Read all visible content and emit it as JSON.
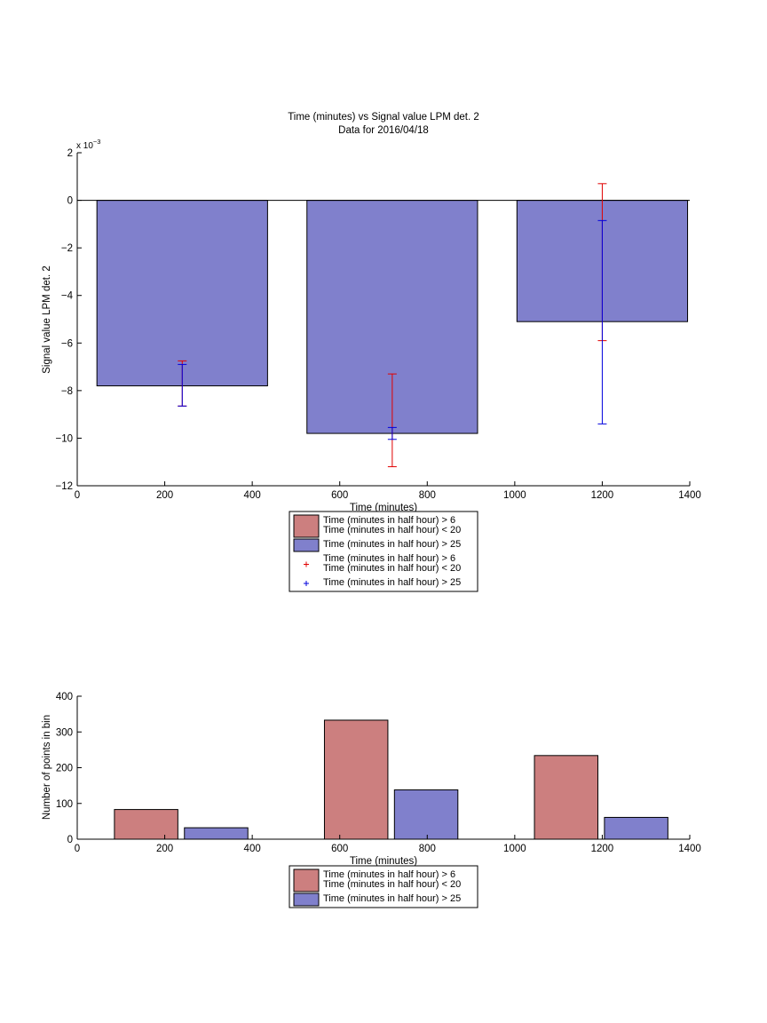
{
  "chart_data": [
    {
      "type": "bar",
      "title": "Time (minutes) vs Signal value LPM det. 2",
      "subtitle": "Data for 2016/04/18",
      "xlabel": "Time (minutes)",
      "ylabel": "Signal value LPM det. 2",
      "exponent_label": "x 10",
      "exponent_power": "−3",
      "xlim": [
        0,
        1400
      ],
      "ylim": [
        -12,
        2
      ],
      "xticks": [
        0,
        200,
        400,
        600,
        800,
        1000,
        1200,
        1400
      ],
      "yticks": [
        -12,
        -10,
        -8,
        -6,
        -4,
        -2,
        0,
        2
      ],
      "grid": false,
      "legend_position": "bottom-center",
      "bars": [
        {
          "x0": 45,
          "x1": 435,
          "value": -7.8
        },
        {
          "x0": 525,
          "x1": 915,
          "value": -9.8
        },
        {
          "x0": 1005,
          "x1": 1395,
          "value": -5.1
        }
      ],
      "bar_color": "#8080cc",
      "legend": [
        {
          "kind": "patch",
          "color": "#cc7f7f",
          "lines": [
            "Time (minutes in half hour) > 6",
            "Time (minutes in half hour) < 20"
          ]
        },
        {
          "kind": "patch",
          "color": "#8080cc",
          "lines": [
            "Time (minutes in half hour) > 25"
          ]
        },
        {
          "kind": "marker",
          "color": "#e00000",
          "lines": [
            "Time (minutes in half hour) > 6",
            "Time (minutes in half hour) < 20"
          ]
        },
        {
          "kind": "marker",
          "color": "#0000dd",
          "lines": [
            "Time (minutes in half hour) > 25"
          ]
        }
      ],
      "error_series": [
        {
          "name": "Time (minutes in half hour) > 6 Time (minutes in half hour) < 20",
          "color": "#e00000",
          "points": [
            {
              "x": 240,
              "low": -8.65,
              "high": -6.75
            },
            {
              "x": 720,
              "low": -11.2,
              "high": -7.3
            },
            {
              "x": 1200,
              "low": -5.9,
              "high": 0.7
            }
          ]
        },
        {
          "name": "Time (minutes in half hour) > 25",
          "color": "#0000dd",
          "points": [
            {
              "x": 240,
              "low": -8.65,
              "high": -6.9
            },
            {
              "x": 720,
              "low": -10.05,
              "high": -9.55
            },
            {
              "x": 1200,
              "low": -9.4,
              "high": -0.85
            }
          ]
        }
      ]
    },
    {
      "type": "bar",
      "xlabel": "Time (minutes)",
      "ylabel": "Number of points in bin",
      "xlim": [
        0,
        1400
      ],
      "ylim": [
        0,
        400
      ],
      "xticks": [
        0,
        200,
        400,
        600,
        800,
        1000,
        1200,
        1400
      ],
      "yticks": [
        0,
        100,
        200,
        300,
        400
      ],
      "grid": false,
      "legend_position": "bottom-center",
      "series": [
        {
          "name": "Time (minutes in half hour) > 6 Time (minutes in half hour) < 20",
          "color": "#cc7f7f",
          "bars": [
            {
              "x0": 85,
              "x1": 230,
              "value": 83
            },
            {
              "x0": 565,
              "x1": 710,
              "value": 333
            },
            {
              "x0": 1045,
              "x1": 1190,
              "value": 234
            }
          ]
        },
        {
          "name": "Time (minutes in half hour) > 25",
          "color": "#8080cc",
          "bars": [
            {
              "x0": 245,
              "x1": 390,
              "value": 32
            },
            {
              "x0": 725,
              "x1": 870,
              "value": 138
            },
            {
              "x0": 1205,
              "x1": 1350,
              "value": 61
            }
          ]
        }
      ],
      "legend": [
        {
          "kind": "patch",
          "color": "#cc7f7f",
          "lines": [
            "Time (minutes in half hour) > 6",
            "Time (minutes in half hour) < 20"
          ]
        },
        {
          "kind": "patch",
          "color": "#8080cc",
          "lines": [
            "Time (minutes in half hour) > 25"
          ]
        }
      ]
    }
  ]
}
